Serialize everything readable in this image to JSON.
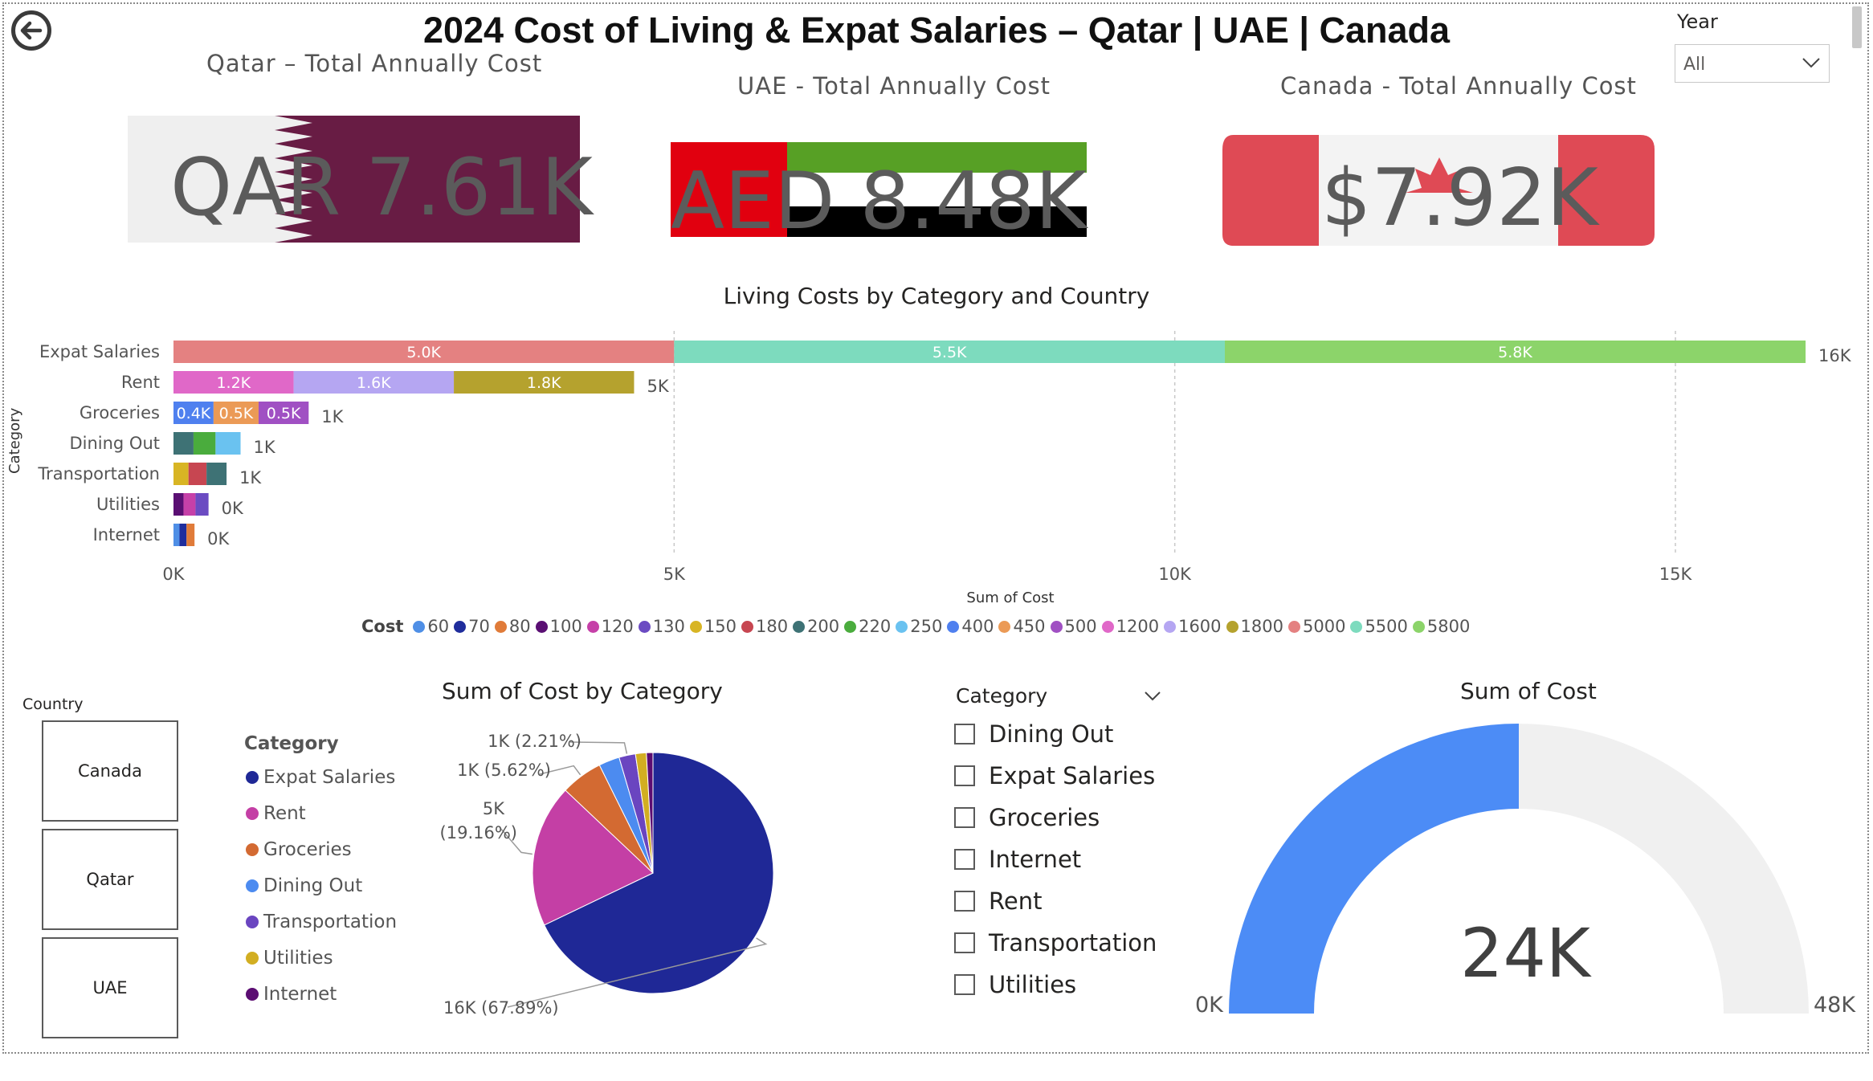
{
  "title": "2024 Cost of Living & Expat Salaries – Qatar | UAE | Canada",
  "year_filter": {
    "label": "Year",
    "value": "All"
  },
  "cards": {
    "qatar": {
      "title": "Qatar – Total Annually Cost",
      "value": "QAR 7.61K"
    },
    "uae": {
      "title": "UAE - Total Annually Cost",
      "value": "AED 8.48K"
    },
    "canada": {
      "title": "Canada - Total Annually Cost",
      "value": "$7.92K"
    }
  },
  "colors": {
    "qatar_maroon": "#681c44",
    "uae_red": "#e1000f",
    "uae_green": "#57a025",
    "uae_black": "#000000",
    "canada_red": "#df4a55",
    "gauge_fill": "#4c8cf6",
    "gauge_track": "#f0f0f0"
  },
  "chart_data": [
    {
      "type": "bar",
      "orientation": "horizontal-stacked",
      "title": "Living Costs by Category and Country",
      "xlabel": "Sum of Cost",
      "ylabel": "Category",
      "xlim": [
        0,
        16500
      ],
      "xticks": [
        "0K",
        "5K",
        "10K",
        "15K"
      ],
      "xtick_values": [
        0,
        5000,
        10000,
        15000
      ],
      "grid": "vertical dashed",
      "legend": {
        "title": "Cost",
        "placement": "bottom",
        "entries": [
          {
            "label": "60",
            "color": "#4f8fe6"
          },
          {
            "label": "70",
            "color": "#1f2d9c"
          },
          {
            "label": "80",
            "color": "#e07b39"
          },
          {
            "label": "100",
            "color": "#5a0f73"
          },
          {
            "label": "120",
            "color": "#c640a8"
          },
          {
            "label": "130",
            "color": "#6b4bc2"
          },
          {
            "label": "150",
            "color": "#d8b524"
          },
          {
            "label": "180",
            "color": "#c74651"
          },
          {
            "label": "200",
            "color": "#3e7275"
          },
          {
            "label": "220",
            "color": "#4aac3d"
          },
          {
            "label": "250",
            "color": "#6ac2f0"
          },
          {
            "label": "400",
            "color": "#4f80ef"
          },
          {
            "label": "450",
            "color": "#eb9a56"
          },
          {
            "label": "500",
            "color": "#a050c3"
          },
          {
            "label": "1200",
            "color": "#e068c8"
          },
          {
            "label": "1600",
            "color": "#b5a6f2"
          },
          {
            "label": "1800",
            "color": "#b5a22e"
          },
          {
            "label": "5000",
            "color": "#e48181"
          },
          {
            "label": "5500",
            "color": "#7ddbbe"
          },
          {
            "label": "5800",
            "color": "#8cd46a"
          }
        ]
      },
      "rows": [
        {
          "category": "Expat Salaries",
          "total_label": "16K",
          "segments": [
            {
              "value": 5000,
              "color": "#e48181",
              "label": "5.0K"
            },
            {
              "value": 5500,
              "color": "#7ddbbe",
              "label": "5.5K"
            },
            {
              "value": 5800,
              "color": "#8cd46a",
              "label": "5.8K"
            }
          ]
        },
        {
          "category": "Rent",
          "total_label": "5K",
          "segments": [
            {
              "value": 1200,
              "color": "#e068c8",
              "label": "1.2K"
            },
            {
              "value": 1600,
              "color": "#b5a6f2",
              "label": "1.6K"
            },
            {
              "value": 1800,
              "color": "#b5a22e",
              "label": "1.8K"
            }
          ]
        },
        {
          "category": "Groceries",
          "total_label": "1K",
          "segments": [
            {
              "value": 400,
              "color": "#4f80ef",
              "label": "0.4K"
            },
            {
              "value": 450,
              "color": "#eb9a56",
              "label": "0.5K"
            },
            {
              "value": 500,
              "color": "#a050c3",
              "label": "0.5K"
            }
          ]
        },
        {
          "category": "Dining Out",
          "total_label": "1K",
          "segments": [
            {
              "value": 200,
              "color": "#3e7275",
              "label": ""
            },
            {
              "value": 220,
              "color": "#4aac3d",
              "label": ""
            },
            {
              "value": 250,
              "color": "#6ac2f0",
              "label": ""
            }
          ]
        },
        {
          "category": "Transportation",
          "total_label": "1K",
          "segments": [
            {
              "value": 150,
              "color": "#d8b524",
              "label": ""
            },
            {
              "value": 180,
              "color": "#c74651",
              "label": ""
            },
            {
              "value": 200,
              "color": "#3e7275",
              "label": ""
            }
          ]
        },
        {
          "category": "Utilities",
          "total_label": "0K",
          "segments": [
            {
              "value": 100,
              "color": "#5a0f73",
              "label": ""
            },
            {
              "value": 120,
              "color": "#c640a8",
              "label": ""
            },
            {
              "value": 130,
              "color": "#6b4bc2",
              "label": ""
            }
          ]
        },
        {
          "category": "Internet",
          "total_label": "0K",
          "segments": [
            {
              "value": 60,
              "color": "#4f8fe6",
              "label": ""
            },
            {
              "value": 70,
              "color": "#1f2d9c",
              "label": ""
            },
            {
              "value": 80,
              "color": "#e07b39",
              "label": ""
            }
          ]
        }
      ]
    },
    {
      "type": "pie",
      "title": "Sum of Cost by Category",
      "legend": {
        "title": "Category",
        "placement": "left"
      },
      "slices": [
        {
          "label": "Expat Salaries",
          "value": 16300,
          "percent": 67.89,
          "color": "#1f2896",
          "data_label": "16K (67.89%)"
        },
        {
          "label": "Rent",
          "value": 4600,
          "percent": 19.16,
          "color": "#c43fa5",
          "data_label": "5K (19.16%)"
        },
        {
          "label": "Groceries",
          "value": 1350,
          "percent": 5.62,
          "color": "#d36a32",
          "data_label": "1K (5.62%)"
        },
        {
          "label": "Dining Out",
          "value": 670,
          "percent": 2.79,
          "color": "#4c8bf0",
          "data_label": ""
        },
        {
          "label": "Transportation",
          "value": 530,
          "percent": 2.21,
          "color": "#6a45c0",
          "data_label": "1K (2.21%)"
        },
        {
          "label": "Utilities",
          "value": 350,
          "percent": 1.46,
          "color": "#d2ae22",
          "data_label": ""
        },
        {
          "label": "Internet",
          "value": 210,
          "percent": 0.87,
          "color": "#5b0d72",
          "data_label": ""
        }
      ]
    },
    {
      "type": "gauge",
      "title": "Sum of Cost",
      "value": 24000,
      "value_label": "24K",
      "min": 0,
      "max": 48000,
      "min_label": "0K",
      "max_label": "48K"
    }
  ],
  "country_slicer": {
    "label": "Country",
    "options": [
      "Canada",
      "Qatar",
      "UAE"
    ]
  },
  "category_slicer": {
    "label": "Category",
    "options": [
      "Dining Out",
      "Expat Salaries",
      "Groceries",
      "Internet",
      "Rent",
      "Transportation",
      "Utilities"
    ]
  }
}
